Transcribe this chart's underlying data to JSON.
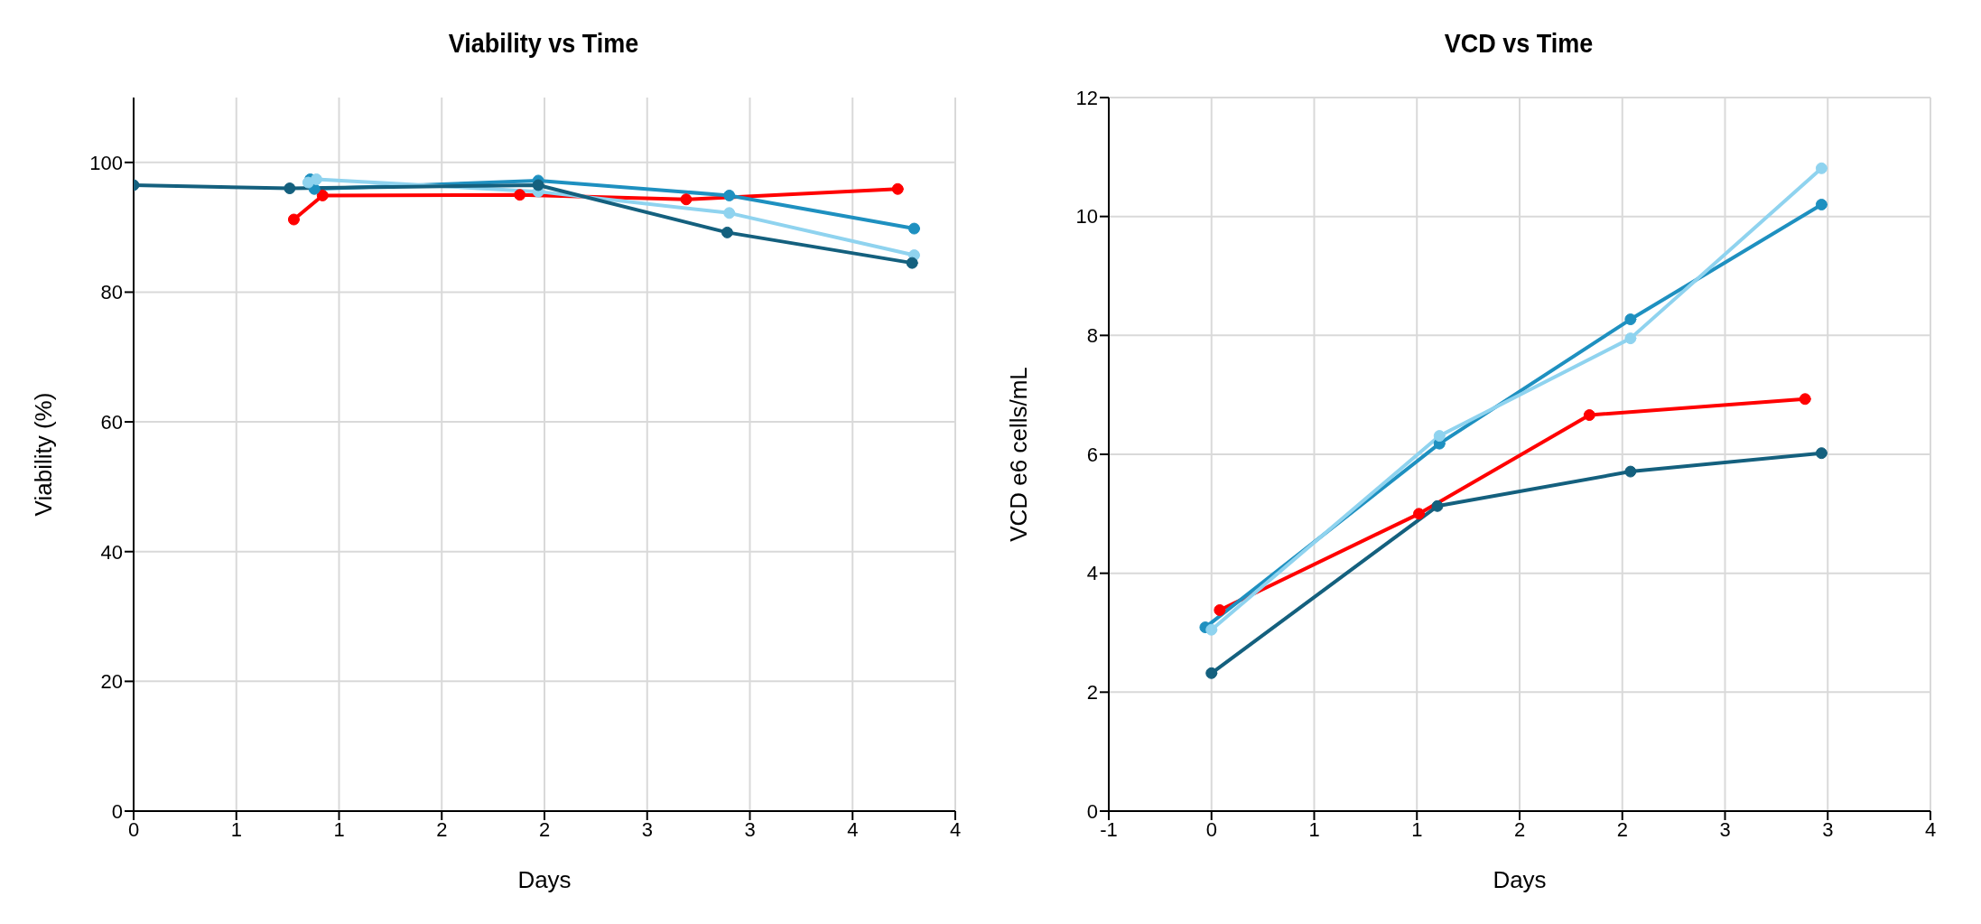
{
  "chart_data": [
    {
      "type": "line",
      "title": "Viability vs Time",
      "xlabel": "Days",
      "ylabel": "Viability (%)",
      "xlim": [
        0,
        4
      ],
      "xticks": [
        0,
        {
          "value": 0.5,
          "label": "1"
        },
        1,
        {
          "value": 1.5,
          "label": "2"
        },
        2,
        {
          "value": 2.5,
          "label": "3"
        },
        3,
        {
          "value": 3.5,
          "label": "4"
        },
        4
      ],
      "ylim": [
        0,
        110
      ],
      "yticks": [
        0,
        20,
        40,
        60,
        80,
        100
      ],
      "grid": true,
      "marker": "circle",
      "line_style": "solid",
      "series": [
        {
          "color": "#ff0000",
          "x": [
            0.78,
            0.92,
            1.88,
            2.69,
            3.72
          ],
          "values": [
            91.2,
            94.9,
            95.0,
            94.3,
            95.9
          ]
        },
        {
          "color": "#1e90c0",
          "x": [
            0.86,
            0.88,
            1.97,
            2.9,
            3.8
          ],
          "values": [
            97.4,
            95.9,
            97.2,
            94.9,
            89.8
          ]
        },
        {
          "color": "#8fd3ef",
          "x": [
            0.85,
            0.89,
            1.97,
            2.9,
            3.8
          ],
          "values": [
            96.9,
            97.4,
            95.5,
            92.2,
            85.7
          ]
        },
        {
          "color": "#14607e",
          "x": [
            0,
            0.76,
            1.97,
            2.89,
            3.79
          ],
          "values": [
            96.5,
            96.0,
            96.5,
            89.2,
            84.5
          ]
        }
      ]
    },
    {
      "type": "line",
      "title": "VCD vs Time",
      "xlabel": "Days",
      "ylabel": "VCD e6 cells/mL",
      "xlim": [
        -0.5,
        3.5
      ],
      "xticks": [
        {
          "value": -0.5,
          "label": "-1"
        },
        {
          "value": 0,
          "label": "0"
        },
        {
          "value": 0.5,
          "label": "1"
        },
        {
          "value": 1,
          "label": "1"
        },
        {
          "value": 1.5,
          "label": "2"
        },
        {
          "value": 2,
          "label": "2"
        },
        {
          "value": 2.5,
          "label": "3"
        },
        {
          "value": 3,
          "label": "3"
        },
        {
          "value": 3.5,
          "label": "4"
        }
      ],
      "ylim": [
        0,
        12
      ],
      "yticks": [
        0,
        2,
        4,
        6,
        8,
        10,
        12
      ],
      "grid": true,
      "marker": "circle",
      "line_style": "solid",
      "series": [
        {
          "color": "#ff0000",
          "x": [
            0.04,
            1.01,
            1.84,
            2.89
          ],
          "values": [
            3.38,
            5.0,
            6.66,
            6.93
          ]
        },
        {
          "color": "#1e90c0",
          "x": [
            -0.03,
            1.11,
            2.04,
            2.97
          ],
          "values": [
            3.09,
            6.18,
            8.27,
            10.2
          ]
        },
        {
          "color": "#8fd3ef",
          "x": [
            0.0,
            1.11,
            2.04,
            2.97
          ],
          "values": [
            3.05,
            6.31,
            7.95,
            10.81
          ]
        },
        {
          "color": "#14607e",
          "x": [
            0.0,
            1.1,
            2.04,
            2.97
          ],
          "values": [
            2.32,
            5.13,
            5.71,
            6.02
          ]
        }
      ]
    }
  ]
}
